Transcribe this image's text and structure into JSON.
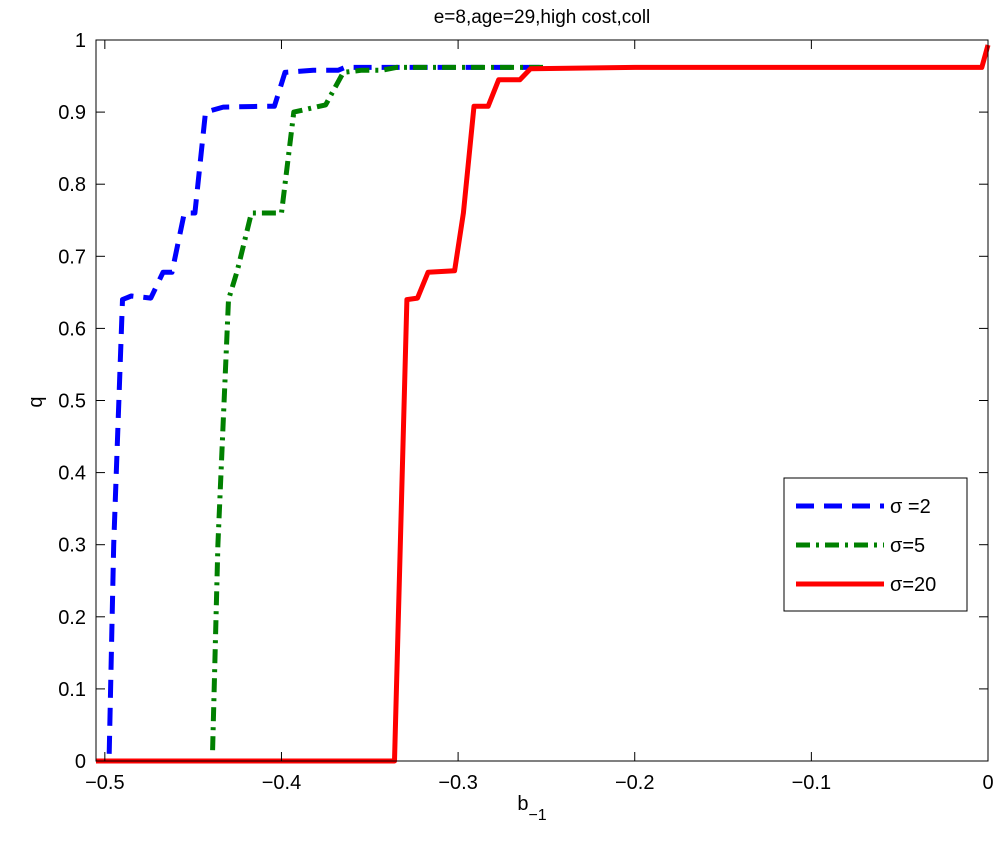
{
  "chart_data": {
    "type": "line",
    "title": "e=8,age=29,high cost,coll",
    "xlabel_base": "b",
    "xlabel_sub": "−1",
    "ylabel": "q",
    "xlim": [
      -0.505,
      0
    ],
    "ylim": [
      0,
      1
    ],
    "xticks": [
      -0.5,
      -0.4,
      -0.3,
      -0.2,
      -0.1,
      0
    ],
    "xtick_labels": [
      "−0.5",
      "−0.4",
      "−0.3",
      "−0.2",
      "−0.1",
      "0"
    ],
    "yticks": [
      0,
      0.1,
      0.2,
      0.3,
      0.4,
      0.5,
      0.6,
      0.7,
      0.8,
      0.9,
      1
    ],
    "ytick_labels": [
      "0",
      "0.1",
      "0.2",
      "0.3",
      "0.4",
      "0.5",
      "0.6",
      "0.7",
      "0.8",
      "0.9",
      "1"
    ],
    "grid": false,
    "legend_position": "right",
    "series": [
      {
        "name": "σ =2",
        "color": "#0000ff",
        "style": "dashed",
        "points": [
          [
            -0.4975,
            0.01
          ],
          [
            -0.495,
            0.3
          ],
          [
            -0.49,
            0.64
          ],
          [
            -0.485,
            0.645
          ],
          [
            -0.474,
            0.642
          ],
          [
            -0.467,
            0.678
          ],
          [
            -0.462,
            0.678
          ],
          [
            -0.455,
            0.76
          ],
          [
            -0.449,
            0.76
          ],
          [
            -0.443,
            0.9
          ],
          [
            -0.433,
            0.907
          ],
          [
            -0.41,
            0.908
          ],
          [
            -0.404,
            0.908
          ],
          [
            -0.398,
            0.955
          ],
          [
            -0.382,
            0.958
          ],
          [
            -0.368,
            0.958
          ],
          [
            -0.364,
            0.962
          ],
          [
            -0.3,
            0.962
          ],
          [
            -0.25,
            0.962
          ]
        ]
      },
      {
        "name": "σ=5",
        "color": "#008000",
        "style": "dashdot",
        "points": [
          [
            -0.439,
            0.015
          ],
          [
            -0.436,
            0.3
          ],
          [
            -0.43,
            0.64
          ],
          [
            -0.425,
            0.68
          ],
          [
            -0.417,
            0.76
          ],
          [
            -0.404,
            0.76
          ],
          [
            -0.4,
            0.76
          ],
          [
            -0.393,
            0.9
          ],
          [
            -0.375,
            0.91
          ],
          [
            -0.365,
            0.955
          ],
          [
            -0.355,
            0.958
          ],
          [
            -0.343,
            0.958
          ],
          [
            -0.335,
            0.962
          ],
          [
            -0.3,
            0.962
          ],
          [
            -0.25,
            0.962
          ]
        ]
      },
      {
        "name": "σ=20",
        "color": "#ff0000",
        "style": "solid",
        "points": [
          [
            -0.505,
            0.0
          ],
          [
            -0.336,
            0.0
          ],
          [
            -0.329,
            0.64
          ],
          [
            -0.323,
            0.642
          ],
          [
            -0.317,
            0.678
          ],
          [
            -0.302,
            0.68
          ],
          [
            -0.297,
            0.76
          ],
          [
            -0.291,
            0.908
          ],
          [
            -0.283,
            0.908
          ],
          [
            -0.277,
            0.945
          ],
          [
            -0.265,
            0.945
          ],
          [
            -0.259,
            0.96
          ],
          [
            -0.2,
            0.962
          ],
          [
            -0.1,
            0.962
          ],
          [
            -0.0035,
            0.962
          ],
          [
            0.0,
            0.993
          ]
        ]
      }
    ]
  }
}
